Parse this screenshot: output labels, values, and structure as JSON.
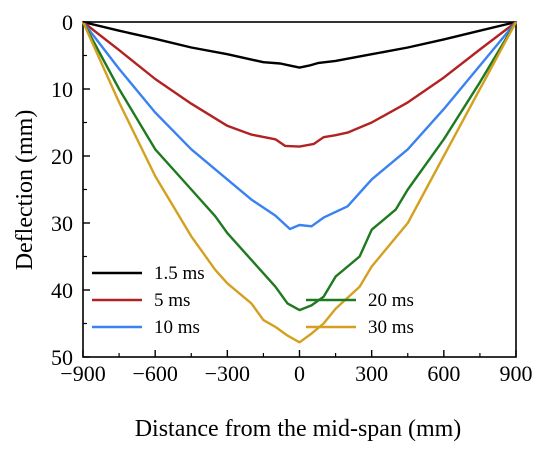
{
  "chart_data": {
    "type": "line",
    "title": "",
    "xlabel": "Distance from the mid-span (mm)",
    "ylabel": "Deflection (mm)",
    "xlim": [
      -900,
      900
    ],
    "ylim": [
      0,
      50
    ],
    "y_inverted": true,
    "xticks": [
      "−900",
      "−600",
      "−300",
      "0",
      "300",
      "600",
      "900"
    ],
    "xtick_values": [
      -900,
      -600,
      -300,
      0,
      300,
      600,
      900
    ],
    "yticks": [
      "0",
      "10",
      "20",
      "30",
      "40",
      "50"
    ],
    "ytick_values": [
      0,
      10,
      20,
      30,
      40,
      50
    ],
    "grid": false,
    "legend_placement": "bottom",
    "series": [
      {
        "name": "1.5 ms",
        "color": "#000000",
        "points": [
          [
            -900,
            0
          ],
          [
            -750,
            1.3
          ],
          [
            -600,
            2.5
          ],
          [
            -450,
            3.8
          ],
          [
            -300,
            4.8
          ],
          [
            -150,
            6.0
          ],
          [
            -80,
            6.2
          ],
          [
            -40,
            6.5
          ],
          [
            0,
            6.8
          ],
          [
            40,
            6.5
          ],
          [
            80,
            6.1
          ],
          [
            150,
            5.8
          ],
          [
            300,
            4.8
          ],
          [
            450,
            3.8
          ],
          [
            600,
            2.6
          ],
          [
            750,
            1.3
          ],
          [
            900,
            0
          ]
        ]
      },
      {
        "name": "5 ms",
        "color": "#b22222",
        "points": [
          [
            -900,
            0
          ],
          [
            -750,
            4.2
          ],
          [
            -600,
            8.5
          ],
          [
            -450,
            12.2
          ],
          [
            -300,
            15.5
          ],
          [
            -200,
            16.8
          ],
          [
            -100,
            17.5
          ],
          [
            -60,
            18.5
          ],
          [
            0,
            18.6
          ],
          [
            60,
            18.2
          ],
          [
            100,
            17.2
          ],
          [
            150,
            16.9
          ],
          [
            200,
            16.5
          ],
          [
            300,
            15.0
          ],
          [
            450,
            12.0
          ],
          [
            600,
            8.3
          ],
          [
            750,
            4.1
          ],
          [
            900,
            0
          ]
        ]
      },
      {
        "name": "10 ms",
        "color": "#3a82f0",
        "points": [
          [
            -900,
            0
          ],
          [
            -750,
            7.0
          ],
          [
            -600,
            13.5
          ],
          [
            -450,
            19.0
          ],
          [
            -300,
            23.5
          ],
          [
            -200,
            26.5
          ],
          [
            -100,
            28.9
          ],
          [
            -40,
            30.9
          ],
          [
            0,
            30.3
          ],
          [
            50,
            30.5
          ],
          [
            100,
            29.2
          ],
          [
            200,
            27.5
          ],
          [
            300,
            23.5
          ],
          [
            450,
            19.0
          ],
          [
            600,
            13.0
          ],
          [
            750,
            6.5
          ],
          [
            900,
            0
          ]
        ]
      },
      {
        "name": "20 ms",
        "color": "#1e7a1e",
        "points": [
          [
            -900,
            0
          ],
          [
            -750,
            10.0
          ],
          [
            -600,
            19.0
          ],
          [
            -450,
            25.0
          ],
          [
            -350,
            29.0
          ],
          [
            -300,
            31.5
          ],
          [
            -200,
            35.5
          ],
          [
            -100,
            39.5
          ],
          [
            -50,
            42.0
          ],
          [
            0,
            43.0
          ],
          [
            50,
            42.3
          ],
          [
            100,
            41.0
          ],
          [
            150,
            38.0
          ],
          [
            250,
            35.0
          ],
          [
            300,
            31.0
          ],
          [
            400,
            28.0
          ],
          [
            450,
            25.0
          ],
          [
            600,
            17.5
          ],
          [
            750,
            9.0
          ],
          [
            900,
            0
          ]
        ]
      },
      {
        "name": "30 ms",
        "color": "#d4a020",
        "points": [
          [
            -900,
            0
          ],
          [
            -750,
            12.0
          ],
          [
            -600,
            23.0
          ],
          [
            -450,
            32.0
          ],
          [
            -350,
            37.0
          ],
          [
            -300,
            39.0
          ],
          [
            -200,
            42.0
          ],
          [
            -150,
            44.5
          ],
          [
            -100,
            45.5
          ],
          [
            -50,
            46.8
          ],
          [
            0,
            47.8
          ],
          [
            50,
            46.5
          ],
          [
            100,
            45.0
          ],
          [
            150,
            42.8
          ],
          [
            250,
            39.5
          ],
          [
            300,
            36.5
          ],
          [
            450,
            30.0
          ],
          [
            600,
            20.0
          ],
          [
            750,
            10.0
          ],
          [
            900,
            0
          ]
        ]
      }
    ]
  }
}
